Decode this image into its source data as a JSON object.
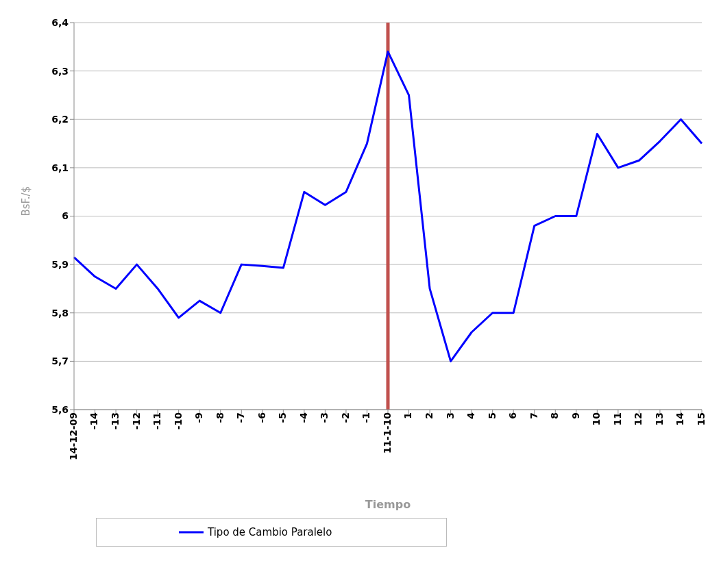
{
  "chart_data": {
    "type": "line",
    "xlabel": "Tiempo",
    "ylabel": "BsF./$",
    "categories": [
      "14-12-09",
      "-14",
      "-13",
      "-12",
      "-11",
      "-10",
      "-9",
      "-8",
      "-7",
      "-6",
      "-5",
      "-4",
      "-3",
      "-2",
      "-1",
      "11-1-10",
      "1",
      "2",
      "3",
      "4",
      "5",
      "6",
      "7",
      "8",
      "9",
      "10",
      "11",
      "12",
      "13",
      "14",
      "15"
    ],
    "series": [
      {
        "name": "Tipo de Cambio Paralelo",
        "color": "#0000ff",
        "values": [
          5.915,
          5.875,
          5.85,
          5.9,
          5.85,
          5.79,
          5.825,
          5.8,
          5.9,
          5.897,
          5.893,
          6.05,
          6.023,
          6.05,
          6.15,
          6.34,
          6.25,
          5.85,
          5.7,
          5.76,
          5.8,
          5.8,
          5.98,
          6.0,
          6.0,
          6.17,
          6.1,
          6.115,
          6.155,
          6.2,
          6.15
        ]
      }
    ],
    "ylim": [
      5.6,
      6.4
    ],
    "yticks": [
      {
        "value": 5.6,
        "label": "5,6"
      },
      {
        "value": 5.7,
        "label": "5,7"
      },
      {
        "value": 5.8,
        "label": "5,8"
      },
      {
        "value": 5.9,
        "label": "5,9"
      },
      {
        "value": 6,
        "label": "6"
      },
      {
        "value": 6.1,
        "label": "6,1"
      },
      {
        "value": 6.2,
        "label": "6,2"
      },
      {
        "value": 6.3,
        "label": "6,3"
      },
      {
        "value": 6.4,
        "label": "6,4"
      }
    ],
    "ref_lines": [
      {
        "axis": "x",
        "value": "11-1-10",
        "color": "#c0504d"
      }
    ],
    "grid": "y",
    "legend": "bottom",
    "marker": "none",
    "line_style": "solid"
  }
}
